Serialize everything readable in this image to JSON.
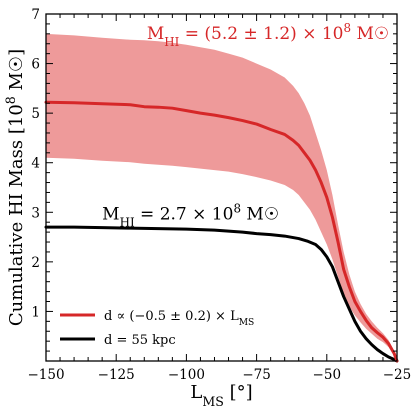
{
  "chart_data": {
    "type": "line",
    "xlabel": "L_MS [°]",
    "ylabel": "Cumulative HI Mass [10^8 M☉]",
    "xlim": [
      -150,
      -25
    ],
    "ylim": [
      0,
      7
    ],
    "xticks": [
      -150,
      -125,
      -100,
      -75,
      -50,
      -25
    ],
    "yticks": [
      1,
      2,
      3,
      4,
      5,
      6,
      7
    ],
    "grid": false,
    "legend_position": "bottom-left",
    "annotations": [
      {
        "text": "M_HI = (5.2 ± 1.2) × 10^8 M☉",
        "color": "#d62728",
        "at": [
          -105,
          6.5
        ]
      },
      {
        "text": "M_HI = 2.7 × 10^8 M☉",
        "color": "#000000",
        "at": [
          -130,
          2.85
        ]
      }
    ],
    "series": [
      {
        "name": "d ∝ (−0.5 ± 0.2) × L_MS",
        "color": "#d62728",
        "band_color": "#ee9a9a",
        "x": [
          -150,
          -140,
          -130,
          -120,
          -115,
          -110,
          -105,
          -100,
          -95,
          -90,
          -85,
          -80,
          -75,
          -70,
          -65,
          -62,
          -60,
          -58,
          -56,
          -54,
          -52,
          -50,
          -48,
          -46,
          -44,
          -42,
          -40,
          -38,
          -36,
          -34,
          -32,
          -30,
          -28,
          -26,
          -25
        ],
        "values": [
          5.22,
          5.21,
          5.19,
          5.17,
          5.13,
          5.12,
          5.1,
          5.05,
          5.0,
          4.96,
          4.91,
          4.85,
          4.78,
          4.67,
          4.57,
          4.45,
          4.35,
          4.2,
          4.05,
          3.85,
          3.6,
          3.3,
          2.9,
          2.4,
          1.85,
          1.5,
          1.2,
          1.0,
          0.82,
          0.67,
          0.57,
          0.48,
          0.35,
          0.15,
          0.0
        ],
        "lower": [
          4.1,
          4.08,
          4.04,
          4.01,
          3.98,
          3.96,
          3.94,
          3.91,
          3.88,
          3.85,
          3.82,
          3.77,
          3.71,
          3.64,
          3.55,
          3.45,
          3.35,
          3.2,
          3.05,
          2.85,
          2.6,
          2.35,
          2.05,
          1.7,
          1.35,
          1.1,
          0.92,
          0.78,
          0.65,
          0.55,
          0.45,
          0.38,
          0.28,
          0.1,
          0.0
        ],
        "upper": [
          6.6,
          6.57,
          6.52,
          6.48,
          6.47,
          6.45,
          6.42,
          6.38,
          6.33,
          6.28,
          6.2,
          6.12,
          6.0,
          5.88,
          5.72,
          5.55,
          5.4,
          5.2,
          4.95,
          4.6,
          4.25,
          3.85,
          3.35,
          2.75,
          2.2,
          1.75,
          1.4,
          1.15,
          0.95,
          0.8,
          0.67,
          0.56,
          0.42,
          0.2,
          0.0
        ]
      },
      {
        "name": "d = 55 kpc",
        "color": "#000000",
        "x": [
          -150,
          -140,
          -130,
          -120,
          -110,
          -100,
          -95,
          -90,
          -85,
          -80,
          -75,
          -70,
          -65,
          -60,
          -57,
          -54,
          -52,
          -50,
          -48,
          -46,
          -44,
          -42,
          -40,
          -38,
          -36,
          -34,
          -32,
          -30,
          -28,
          -26,
          -25
        ],
        "values": [
          2.7,
          2.7,
          2.69,
          2.68,
          2.67,
          2.66,
          2.65,
          2.64,
          2.62,
          2.6,
          2.57,
          2.55,
          2.52,
          2.47,
          2.42,
          2.35,
          2.25,
          2.1,
          1.9,
          1.6,
          1.3,
          1.05,
          0.8,
          0.6,
          0.45,
          0.33,
          0.23,
          0.15,
          0.08,
          0.03,
          0.0
        ]
      }
    ]
  }
}
